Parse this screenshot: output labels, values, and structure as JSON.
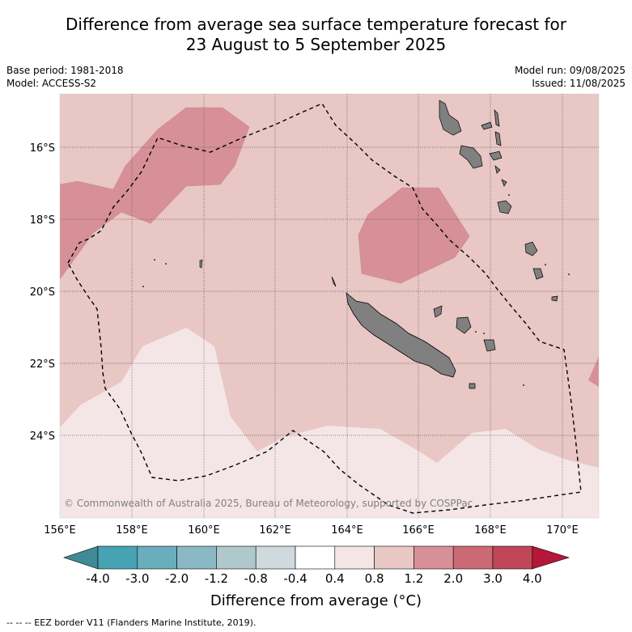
{
  "title_line1": "Difference from average sea surface temperature forecast for",
  "title_line2": "23 August to 5 September 2025",
  "base_period": "Base period: 1981-2018",
  "model": "Model: ACCESS-S2",
  "model_run": "Model run: 09/08/2025",
  "issued": "Issued: 11/08/2025",
  "copyright": "© Commonwealth of Australia 2025, Bureau of Meteorology, supported by COSPPac",
  "lat_labels": [
    "16°S",
    "18°S",
    "20°S",
    "22°S",
    "24°S"
  ],
  "lon_labels": [
    "156°E",
    "158°E",
    "160°E",
    "162°E",
    "164°E",
    "166°E",
    "168°E",
    "170°E"
  ],
  "colorbar": {
    "title": "Difference from average (°C)",
    "tick_labels": [
      "-4.0",
      "-3.0",
      "-2.0",
      "-1.2",
      "-0.8",
      "-0.4",
      "0.4",
      "0.8",
      "1.2",
      "2.0",
      "3.0",
      "4.0"
    ],
    "colors": [
      "#47a3b3",
      "#6aadbd",
      "#8bb8c5",
      "#aec8cc",
      "#d0dade",
      "#ffffff",
      "#f4e6e6",
      "#e8c7c4",
      "#d79097",
      "#cb6a75",
      "#c04757"
    ],
    "low_extend_color": "#3e8a96",
    "high_extend_color": "#b5173a"
  },
  "footer": "--  --  -- EEZ border V11 (Flanders Marine Institute, 2019).",
  "map_colors": {
    "light": "#f4e6e6",
    "medium": "#e8c7c4",
    "warm": "#d79097",
    "land": "#808080"
  }
}
